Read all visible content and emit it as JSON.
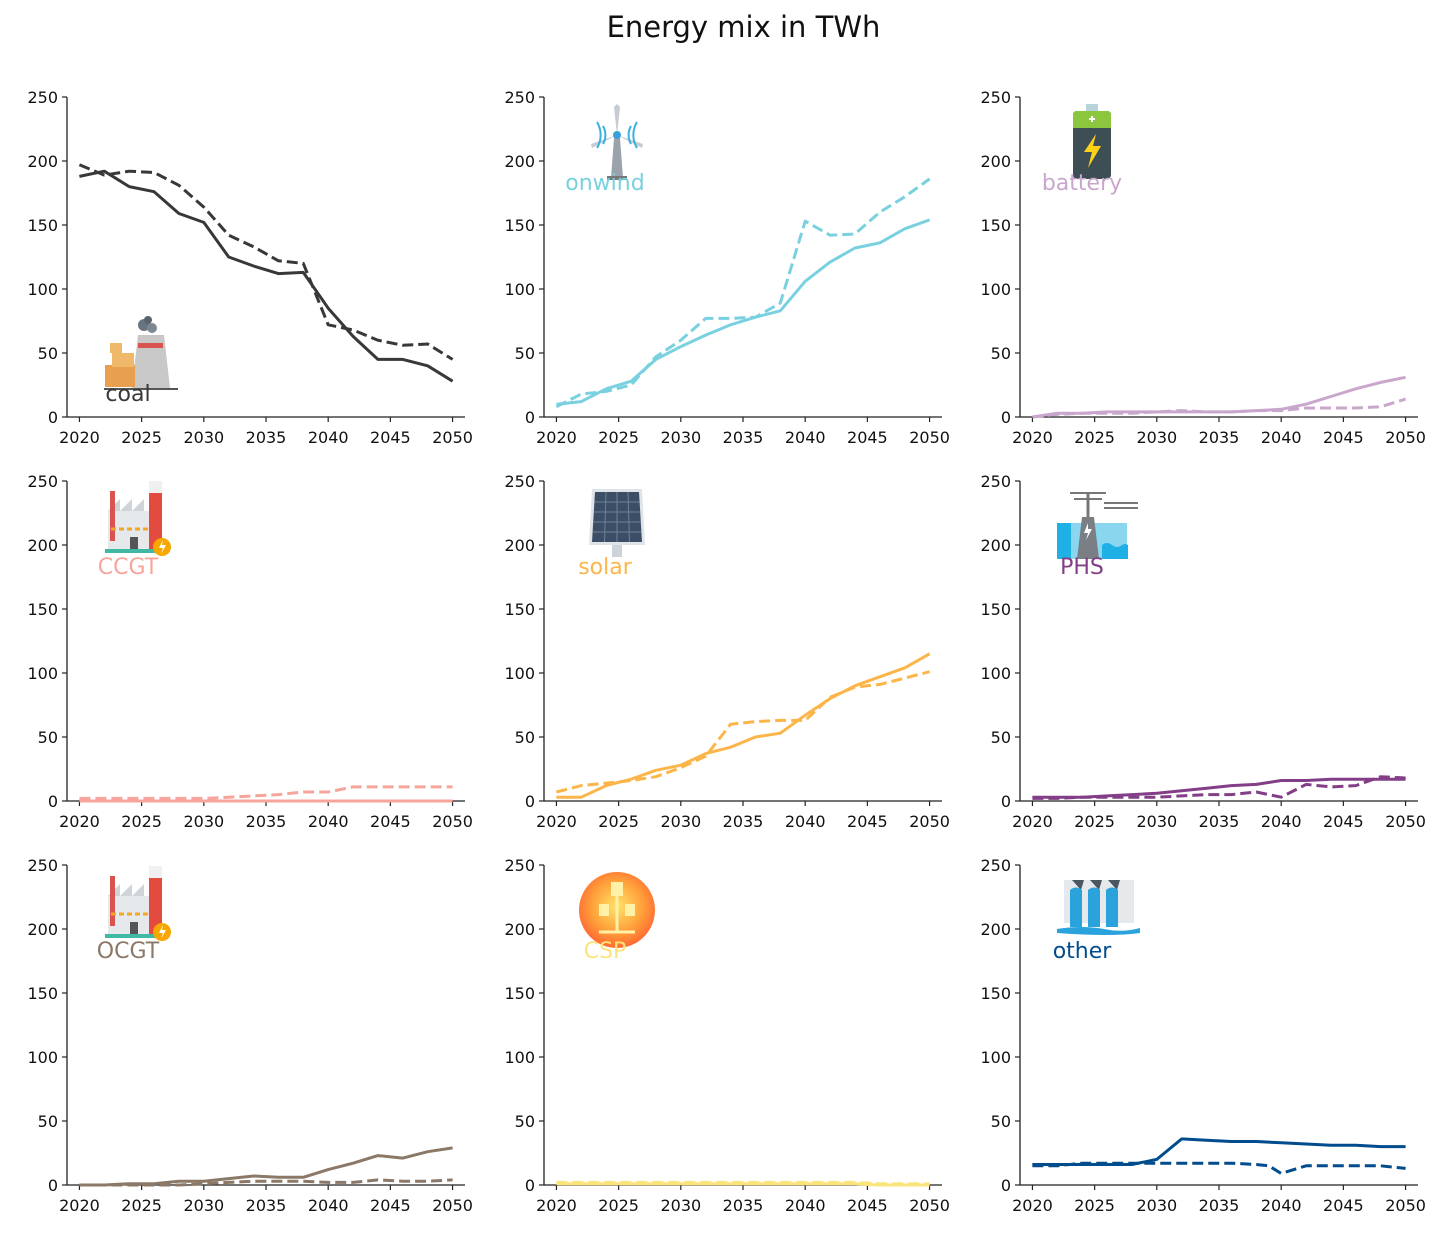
{
  "title": "Energy mix in TWh",
  "x_ticks": [
    2020,
    2025,
    2030,
    2035,
    2040,
    2045,
    2050
  ],
  "y_ticks": [
    0,
    50,
    100,
    150,
    200,
    250
  ],
  "chart_data": [
    {
      "type": "line",
      "label": "coal",
      "color": "#383838",
      "icon": "coal-plant-icon",
      "xlim": [
        2019,
        2051
      ],
      "ylim": [
        0,
        250
      ],
      "series": [
        {
          "style": "solid",
          "x": [
            2020,
            2022,
            2024,
            2026,
            2028,
            2030,
            2032,
            2034,
            2036,
            2038,
            2040,
            2042,
            2044,
            2046,
            2048,
            2050
          ],
          "values": [
            188,
            192,
            180,
            176,
            159,
            152,
            125,
            118,
            112,
            113,
            85,
            63,
            45,
            45,
            40,
            28
          ]
        },
        {
          "style": "dashed",
          "x": [
            2020,
            2022,
            2024,
            2026,
            2028,
            2030,
            2032,
            2034,
            2036,
            2038,
            2040,
            2042,
            2044,
            2046,
            2048,
            2050
          ],
          "values": [
            197,
            189,
            192,
            191,
            181,
            164,
            142,
            133,
            122,
            120,
            72,
            68,
            60,
            56,
            57,
            45
          ]
        }
      ]
    },
    {
      "type": "line",
      "label": "onwind",
      "color": "#79d1e0",
      "icon": "wind-turbine-icon",
      "xlim": [
        2019,
        2051
      ],
      "ylim": [
        0,
        250
      ],
      "series": [
        {
          "style": "solid",
          "x": [
            2020,
            2022,
            2024,
            2026,
            2028,
            2030,
            2032,
            2034,
            2036,
            2038,
            2040,
            2042,
            2044,
            2046,
            2048,
            2050
          ],
          "values": [
            10,
            12,
            22,
            28,
            45,
            55,
            64,
            72,
            78,
            83,
            106,
            121,
            132,
            136,
            147,
            154
          ]
        },
        {
          "style": "dashed",
          "x": [
            2020,
            2022,
            2024,
            2026,
            2028,
            2030,
            2032,
            2034,
            2036,
            2038,
            2040,
            2042,
            2044,
            2046,
            2048,
            2050
          ],
          "values": [
            8,
            18,
            20,
            25,
            47,
            60,
            77,
            77,
            78,
            89,
            153,
            142,
            143,
            160,
            172,
            186
          ]
        }
      ]
    },
    {
      "type": "line",
      "label": "battery",
      "color": "#c9a7cc",
      "icon": "battery-icon",
      "xlim": [
        2019,
        2051
      ],
      "ylim": [
        0,
        250
      ],
      "series": [
        {
          "style": "solid",
          "x": [
            2020,
            2022,
            2024,
            2026,
            2028,
            2030,
            2032,
            2034,
            2036,
            2038,
            2040,
            2042,
            2044,
            2046,
            2048,
            2050
          ],
          "values": [
            0,
            3,
            3,
            4,
            4,
            4,
            4,
            4,
            4,
            5,
            6,
            10,
            16,
            22,
            27,
            31
          ]
        },
        {
          "style": "dashed",
          "x": [
            2020,
            2022,
            2024,
            2026,
            2028,
            2030,
            2032,
            2034,
            2036,
            2038,
            2040,
            2042,
            2044,
            2046,
            2048,
            2050
          ],
          "values": [
            0,
            2,
            3,
            3,
            3,
            4,
            5,
            4,
            4,
            5,
            5,
            7,
            7,
            7,
            8,
            14
          ]
        }
      ]
    },
    {
      "type": "line",
      "label": "CCGT",
      "color": "#f7a59c",
      "icon": "gas-plant-icon",
      "xlim": [
        2019,
        2051
      ],
      "ylim": [
        0,
        250
      ],
      "series": [
        {
          "style": "solid",
          "x": [
            2020,
            2022,
            2024,
            2026,
            2028,
            2030,
            2032,
            2034,
            2036,
            2038,
            2040,
            2042,
            2044,
            2046,
            2048,
            2050
          ],
          "values": [
            0,
            0,
            0,
            0,
            0,
            0,
            0,
            0,
            0,
            0,
            0,
            0,
            0,
            0,
            0,
            0
          ]
        },
        {
          "style": "dashed",
          "x": [
            2020,
            2022,
            2024,
            2026,
            2028,
            2030,
            2032,
            2034,
            2036,
            2038,
            2040,
            2042,
            2044,
            2046,
            2048,
            2050
          ],
          "values": [
            2,
            2,
            2,
            2,
            2,
            2,
            3,
            4,
            5,
            7,
            7,
            11,
            11,
            11,
            11,
            11
          ]
        }
      ]
    },
    {
      "type": "line",
      "label": "solar",
      "color": "#fbb549",
      "icon": "solar-panel-icon",
      "xlim": [
        2019,
        2051
      ],
      "ylim": [
        0,
        250
      ],
      "series": [
        {
          "style": "solid",
          "x": [
            2020,
            2022,
            2024,
            2026,
            2028,
            2030,
            2032,
            2034,
            2036,
            2038,
            2040,
            2042,
            2044,
            2046,
            2048,
            2050
          ],
          "values": [
            3,
            3,
            12,
            17,
            24,
            28,
            37,
            42,
            50,
            53,
            67,
            80,
            90,
            97,
            104,
            115
          ]
        },
        {
          "style": "dashed",
          "x": [
            2020,
            2022,
            2024,
            2026,
            2028,
            2030,
            2032,
            2034,
            2036,
            2038,
            2040,
            2042,
            2044,
            2046,
            2048,
            2050
          ],
          "values": [
            7,
            12,
            14,
            16,
            19,
            26,
            35,
            60,
            62,
            63,
            63,
            81,
            89,
            91,
            96,
            101
          ]
        }
      ]
    },
    {
      "type": "line",
      "label": "PHS",
      "color": "#833e88",
      "icon": "pumped-hydro-icon",
      "xlim": [
        2019,
        2051
      ],
      "ylim": [
        0,
        250
      ],
      "series": [
        {
          "style": "solid",
          "x": [
            2020,
            2022,
            2024,
            2026,
            2028,
            2030,
            2032,
            2034,
            2036,
            2038,
            2040,
            2042,
            2044,
            2046,
            2048,
            2050
          ],
          "values": [
            3,
            3,
            3,
            4,
            5,
            6,
            8,
            10,
            12,
            13,
            16,
            16,
            17,
            17,
            17,
            17
          ]
        },
        {
          "style": "dashed",
          "x": [
            2020,
            2022,
            2024,
            2026,
            2028,
            2030,
            2032,
            2034,
            2036,
            2038,
            2040,
            2042,
            2044,
            2046,
            2048,
            2050
          ],
          "values": [
            2,
            2,
            3,
            3,
            3,
            3,
            4,
            5,
            5,
            7,
            3,
            13,
            11,
            12,
            19,
            18
          ]
        }
      ]
    },
    {
      "type": "line",
      "label": "OCGT",
      "color": "#8b7867",
      "icon": "gas-plant-icon",
      "xlim": [
        2019,
        2051
      ],
      "ylim": [
        0,
        250
      ],
      "series": [
        {
          "style": "solid",
          "x": [
            2020,
            2022,
            2024,
            2026,
            2028,
            2030,
            2032,
            2034,
            2036,
            2038,
            2040,
            2042,
            2044,
            2046,
            2048,
            2050
          ],
          "values": [
            0,
            0,
            1,
            1,
            3,
            3,
            5,
            7,
            6,
            6,
            12,
            17,
            23,
            21,
            26,
            29
          ]
        },
        {
          "style": "dashed",
          "x": [
            2020,
            2022,
            2024,
            2026,
            2028,
            2030,
            2032,
            2034,
            2036,
            2038,
            2040,
            2042,
            2044,
            2046,
            2048,
            2050
          ],
          "values": [
            0,
            0,
            0,
            0,
            0,
            1,
            2,
            3,
            3,
            3,
            2,
            2,
            4,
            3,
            3,
            4
          ]
        }
      ]
    },
    {
      "type": "line",
      "label": "CSP",
      "color": "#fbe57a",
      "icon": "csp-sun-icon",
      "xlim": [
        2019,
        2051
      ],
      "ylim": [
        0,
        250
      ],
      "series": [
        {
          "style": "solid",
          "x": [
            2020,
            2022,
            2024,
            2026,
            2028,
            2030,
            2032,
            2034,
            2036,
            2038,
            2040,
            2042,
            2044,
            2046,
            2048,
            2050
          ],
          "values": [
            1,
            1,
            1,
            1,
            1,
            1,
            1,
            1,
            1,
            1,
            1,
            1,
            1,
            0,
            0,
            0
          ]
        },
        {
          "style": "dashed",
          "x": [
            2020,
            2022,
            2024,
            2026,
            2028,
            2030,
            2032,
            2034,
            2036,
            2038,
            2040,
            2042,
            2044,
            2046,
            2048,
            2050
          ],
          "values": [
            2,
            2,
            2,
            2,
            2,
            2,
            2,
            2,
            2,
            2,
            2,
            2,
            2,
            1,
            1,
            1
          ]
        }
      ]
    },
    {
      "type": "line",
      "label": "other",
      "color": "#004c8c",
      "icon": "hydro-dam-icon",
      "xlim": [
        2019,
        2051
      ],
      "ylim": [
        0,
        250
      ],
      "series": [
        {
          "style": "solid",
          "x": [
            2020,
            2022,
            2024,
            2026,
            2028,
            2030,
            2032,
            2034,
            2036,
            2038,
            2040,
            2042,
            2044,
            2046,
            2048,
            2050
          ],
          "values": [
            16,
            16,
            16,
            16,
            16,
            20,
            36,
            35,
            34,
            34,
            33,
            32,
            31,
            31,
            30,
            30
          ]
        },
        {
          "style": "dashed",
          "x": [
            2020,
            2022,
            2024,
            2026,
            2028,
            2030,
            2032,
            2034,
            2036,
            2038,
            2039,
            2040,
            2042,
            2044,
            2046,
            2048,
            2050
          ],
          "values": [
            15,
            15,
            17,
            17,
            17,
            17,
            17,
            17,
            17,
            16,
            15,
            9,
            15,
            15,
            15,
            15,
            13
          ]
        }
      ]
    }
  ]
}
